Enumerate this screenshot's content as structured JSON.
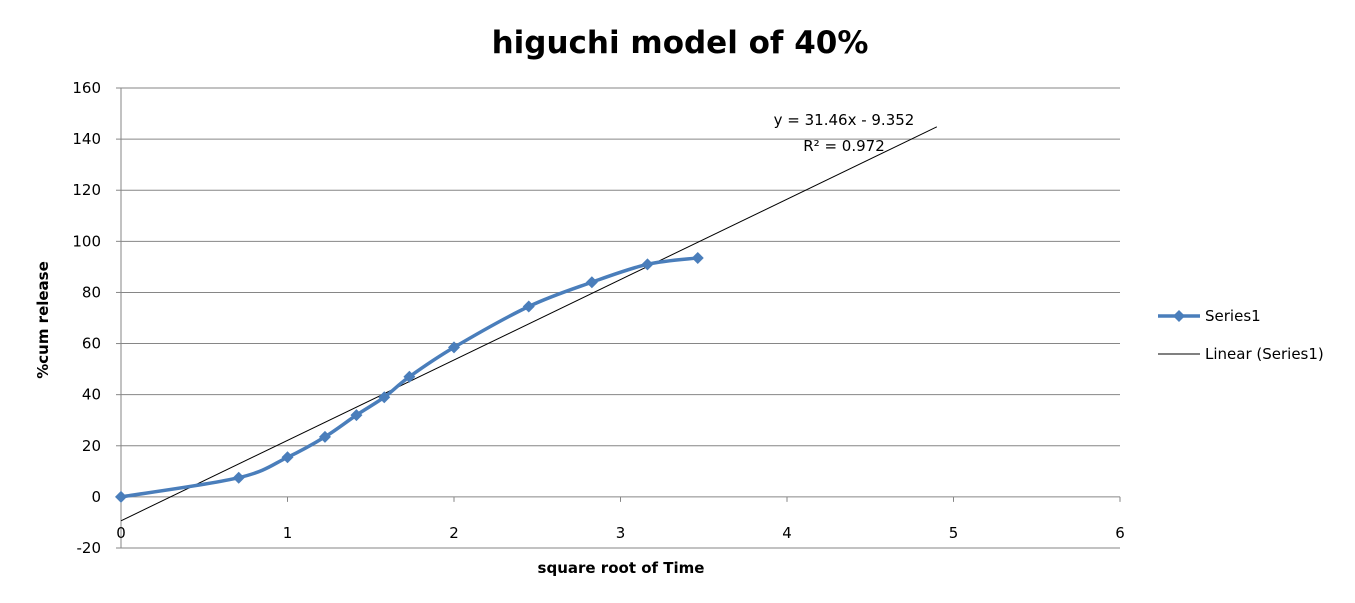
{
  "chart_data": {
    "type": "scatter",
    "title": "higuchi model of 40%",
    "xlabel": "square root of Time",
    "ylabel": "%cum release",
    "xlim": [
      0,
      6
    ],
    "ylim": [
      -20,
      160
    ],
    "x_ticks": [
      0,
      1,
      2,
      3,
      4,
      5,
      6
    ],
    "y_ticks": [
      -20,
      0,
      20,
      40,
      60,
      80,
      100,
      120,
      140,
      160
    ],
    "grid": "horizontal",
    "legend_position": "right",
    "series": [
      {
        "name": "Series1",
        "color": "#4a7ebb",
        "marker": "diamond",
        "smooth": true,
        "x": [
          0,
          0.707,
          1,
          1.225,
          1.414,
          1.581,
          1.732,
          2,
          2.449,
          2.828,
          3.162,
          3.464
        ],
        "y": [
          0,
          7.5,
          15.5,
          23.5,
          32,
          39,
          47,
          58.5,
          74.5,
          84,
          91,
          93.5
        ]
      }
    ],
    "trendline": {
      "name": "Linear (Series1)",
      "color": "#000000",
      "slope": 31.46,
      "intercept": -9.352,
      "x_range": [
        0,
        4.9
      ],
      "equation": "y = 31.46x - 9.352",
      "r_squared": "R² = 0.972"
    }
  }
}
